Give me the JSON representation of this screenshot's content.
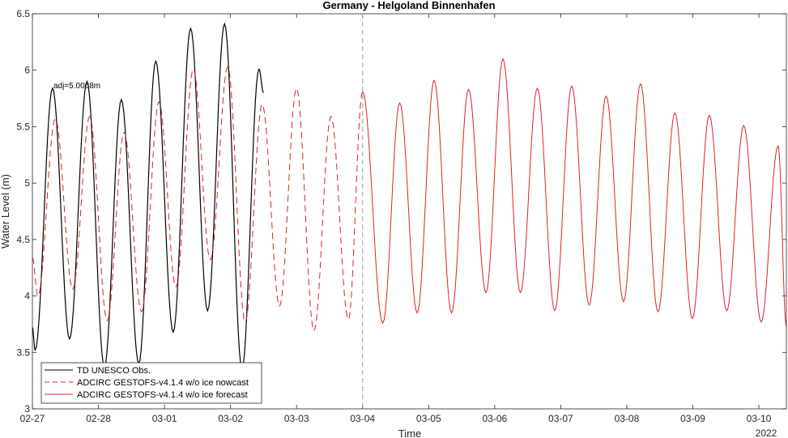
{
  "chart_data": {
    "type": "line",
    "title": "Germany - Helgoland Binnenhafen",
    "xlabel": "Time",
    "ylabel": "Water Level (m)",
    "xlim": [
      "2022-02-27T00:00",
      "2022-03-10T10:00"
    ],
    "ylim": [
      3,
      6.5
    ],
    "y_ticks": [
      3,
      3.5,
      4,
      4.5,
      5,
      5.5,
      6,
      6.5
    ],
    "x_ticks": [
      {
        "date": "2022-02-27",
        "label": "02-27"
      },
      {
        "date": "2022-02-28",
        "label": "02-28"
      },
      {
        "date": "2022-03-01",
        "label": "03-01"
      },
      {
        "date": "2022-03-02",
        "label": "03-02"
      },
      {
        "date": "2022-03-03",
        "label": "03-03"
      },
      {
        "date": "2022-03-04",
        "label": "03-04"
      },
      {
        "date": "2022-03-05",
        "label": "03-05"
      },
      {
        "date": "2022-03-06",
        "label": "03-06"
      },
      {
        "date": "2022-03-07",
        "label": "03-07"
      },
      {
        "date": "2022-03-08",
        "label": "03-08"
      },
      {
        "date": "2022-03-09",
        "label": "03-09"
      },
      {
        "date": "2022-03-10",
        "label": "03-10"
      }
    ],
    "year_label": "2022",
    "grid": false,
    "legend_position": "bottom-left",
    "annotation": "adj=5.0068m",
    "vertical_marker": "2022-03-04T00:00",
    "series": [
      {
        "name": "TD UNESCO Obs.",
        "color": "#000000",
        "style": "solid",
        "extrema": [
          [
            "2022-02-27T00:00",
            3.72
          ],
          [
            "2022-02-27T01:00",
            3.52
          ],
          [
            "2022-02-27T07:20",
            5.84
          ],
          [
            "2022-02-27T13:30",
            3.62
          ],
          [
            "2022-02-27T19:50",
            5.9
          ],
          [
            "2022-02-28T02:10",
            3.37
          ],
          [
            "2022-02-28T08:20",
            5.74
          ],
          [
            "2022-02-28T14:40",
            3.4
          ],
          [
            "2022-02-28T20:50",
            6.08
          ],
          [
            "2022-03-01T03:10",
            3.68
          ],
          [
            "2022-03-01T09:30",
            6.37
          ],
          [
            "2022-03-01T15:40",
            3.87
          ],
          [
            "2022-03-01T21:50",
            6.41
          ],
          [
            "2022-03-02T04:10",
            3.35
          ],
          [
            "2022-03-02T10:20",
            6.01
          ],
          [
            "2022-03-02T12:00",
            5.8
          ]
        ]
      },
      {
        "name": "ADCIRC GESTOFS-v4.1.4 w/o ice nowcast",
        "color": "#e02020",
        "style": "dashed",
        "extrema": [
          [
            "2022-02-27T00:00",
            4.34
          ],
          [
            "2022-02-27T02:00",
            4.0
          ],
          [
            "2022-02-27T08:20",
            5.57
          ],
          [
            "2022-02-27T14:40",
            4.06
          ],
          [
            "2022-02-27T20:50",
            5.59
          ],
          [
            "2022-02-28T03:10",
            3.78
          ],
          [
            "2022-02-28T09:20",
            5.45
          ],
          [
            "2022-02-28T15:40",
            3.86
          ],
          [
            "2022-02-28T22:00",
            5.72
          ],
          [
            "2022-03-01T04:10",
            4.08
          ],
          [
            "2022-03-01T10:30",
            6.01
          ],
          [
            "2022-03-01T16:40",
            4.32
          ],
          [
            "2022-03-01T23:00",
            6.03
          ],
          [
            "2022-03-02T05:20",
            3.77
          ],
          [
            "2022-03-02T11:30",
            5.7
          ],
          [
            "2022-03-02T17:50",
            3.91
          ],
          [
            "2022-03-03T00:00",
            5.84
          ],
          [
            "2022-03-03T06:20",
            3.69
          ],
          [
            "2022-03-03T12:30",
            5.59
          ],
          [
            "2022-03-03T18:50",
            3.79
          ],
          [
            "2022-03-04T00:00",
            5.81
          ]
        ]
      },
      {
        "name": "ADCIRC GESTOFS-v4.1.4 w/o ice forecast",
        "color": "#e02020",
        "style": "solid",
        "extrema": [
          [
            "2022-03-04T00:00",
            5.81
          ],
          [
            "2022-03-04T07:20",
            3.76
          ],
          [
            "2022-03-04T13:30",
            5.71
          ],
          [
            "2022-03-04T19:50",
            3.85
          ],
          [
            "2022-03-05T02:00",
            5.91
          ],
          [
            "2022-03-05T08:20",
            3.85
          ],
          [
            "2022-03-05T14:30",
            5.83
          ],
          [
            "2022-03-05T20:50",
            4.03
          ],
          [
            "2022-03-06T03:00",
            6.1
          ],
          [
            "2022-03-06T09:20",
            4.03
          ],
          [
            "2022-03-06T15:30",
            5.84
          ],
          [
            "2022-03-06T21:50",
            3.87
          ],
          [
            "2022-03-07T04:00",
            5.86
          ],
          [
            "2022-03-07T10:20",
            3.92
          ],
          [
            "2022-03-07T16:30",
            5.77
          ],
          [
            "2022-03-07T22:50",
            3.95
          ],
          [
            "2022-03-08T05:00",
            5.88
          ],
          [
            "2022-03-08T11:20",
            3.86
          ],
          [
            "2022-03-08T17:30",
            5.62
          ],
          [
            "2022-03-08T23:50",
            3.8
          ],
          [
            "2022-03-09T06:00",
            5.6
          ],
          [
            "2022-03-09T12:20",
            3.87
          ],
          [
            "2022-03-09T18:30",
            5.51
          ],
          [
            "2022-03-10T00:50",
            3.77
          ],
          [
            "2022-03-10T07:00",
            5.33
          ],
          [
            "2022-03-10T10:00",
            3.73
          ]
        ]
      }
    ]
  }
}
